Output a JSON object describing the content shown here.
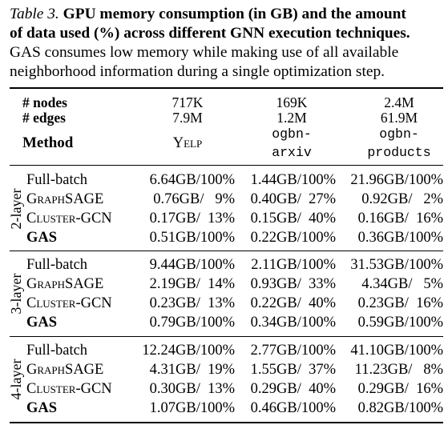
{
  "caption": {
    "label": "Table 3.",
    "title_line1": "GPU memory consumption (in GB) and the amount",
    "title_line2": "of data used (%) across different GNN execution techniques.",
    "desc_line1": "GAS consumes low memory while making use of all available",
    "desc_line2": "neighborhood information during a single optimization step."
  },
  "header": {
    "nodes_label": "# nodes",
    "edges_label": "# edges",
    "method_label": "Method",
    "datasets": [
      {
        "nodes": "717K",
        "edges": "7.9M",
        "name": "Yelp",
        "name_line2": ""
      },
      {
        "nodes": "169K",
        "edges": "1.2M",
        "name": "ogbn-",
        "name_line2": "arxiv"
      },
      {
        "nodes": "2.4M",
        "edges": "61.9M",
        "name": "ogbn-",
        "name_line2": "products"
      }
    ]
  },
  "groups": [
    {
      "label": "2-layer",
      "rows": [
        {
          "method": "Full-batch",
          "bold": false,
          "cells": [
            "6.64GB/100%",
            "1.44GB/100%",
            "21.96GB/100%"
          ]
        },
        {
          "method": "GraphSAGE",
          "bold": false,
          "cells": [
            "0.76GB/   9%",
            "0.40GB/  27%",
            "0.92GB/   2%"
          ]
        },
        {
          "method": "Cluster-GCN",
          "bold": false,
          "cells": [
            "0.17GB/  13%",
            "0.15GB/  40%",
            "0.16GB/  16%"
          ]
        },
        {
          "method": "GAS",
          "bold": true,
          "cells": [
            "0.51GB/100%",
            "0.22GB/100%",
            "0.36GB/100%"
          ]
        }
      ]
    },
    {
      "label": "3-layer",
      "rows": [
        {
          "method": "Full-batch",
          "bold": false,
          "cells": [
            "9.44GB/100%",
            "2.11GB/100%",
            "31.53GB/100%"
          ]
        },
        {
          "method": "GraphSAGE",
          "bold": false,
          "cells": [
            "2.19GB/  14%",
            "0.93GB/  33%",
            "4.34GB/   5%"
          ]
        },
        {
          "method": "Cluster-GCN",
          "bold": false,
          "cells": [
            "0.23GB/  13%",
            "0.22GB/  40%",
            "0.23GB/  16%"
          ]
        },
        {
          "method": "GAS",
          "bold": true,
          "cells": [
            "0.79GB/100%",
            "0.34GB/100%",
            "0.59GB/100%"
          ]
        }
      ]
    },
    {
      "label": "4-layer",
      "rows": [
        {
          "method": "Full-batch",
          "bold": false,
          "cells": [
            "12.24GB/100%",
            "2.77GB/100%",
            "41.10GB/100%"
          ]
        },
        {
          "method": "GraphSAGE",
          "bold": false,
          "cells": [
            "4.31GB/  19%",
            "1.55GB/  37%",
            "11.23GB/   8%"
          ]
        },
        {
          "method": "Cluster-GCN",
          "bold": false,
          "cells": [
            "0.30GB/  13%",
            "0.29GB/  40%",
            "0.29GB/  16%"
          ]
        },
        {
          "method": "GAS",
          "bold": true,
          "cells": [
            "1.07GB/100%",
            "0.46GB/100%",
            "0.82GB/100%"
          ]
        }
      ]
    }
  ]
}
